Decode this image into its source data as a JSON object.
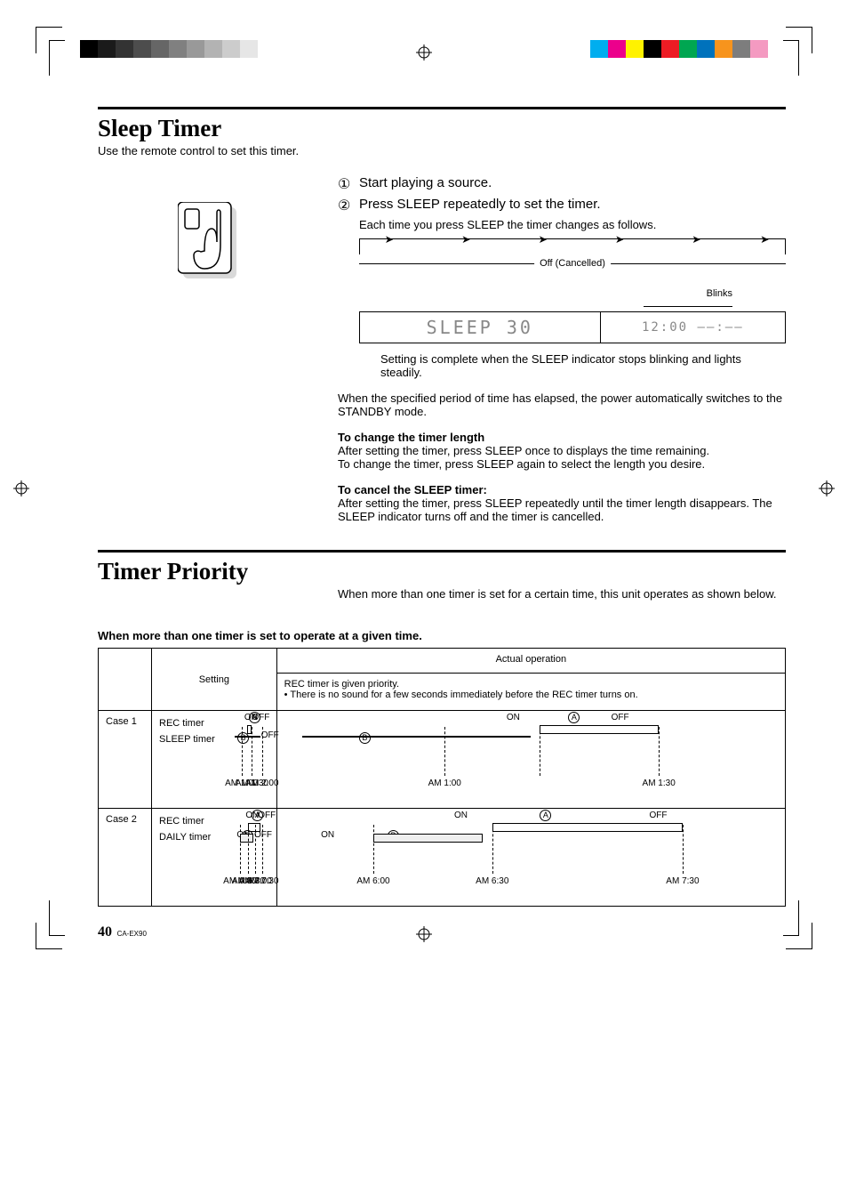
{
  "page": {
    "number": "40",
    "model": "CA-EX90"
  },
  "topbar": {
    "gray_shades": [
      "#000000",
      "#1a1a1a",
      "#333333",
      "#4d4d4d",
      "#666666",
      "#808080",
      "#999999",
      "#b3b3b3",
      "#cccccc",
      "#e6e6e6"
    ],
    "color_swatches": [
      "#00aeef",
      "#ec008c",
      "#fff200",
      "#000000",
      "#ed1c24",
      "#00a651",
      "#0072bc",
      "#f7941d",
      "#7d7d7d",
      "#f49ac1"
    ]
  },
  "sleep_timer": {
    "title": "Sleep Timer",
    "subtitle": "Use the remote control to set this timer.",
    "step1": "Start playing a source.",
    "step2": "Press SLEEP repeatedly to set the timer.",
    "step2_note": "Each time you press SLEEP the timer changes as follows.",
    "cycle_off_label": "Off (Cancelled)",
    "blinks_label": "Blinks",
    "lcd_left": "SLEEP  30",
    "lcd_right": "12:00 ‒‒:‒‒",
    "setting_complete": "Setting is complete when the SLEEP indicator stops blinking and lights steadily.",
    "elapsed_para": "When the specified period of time has elapsed, the power automatically switches to the STANDBY mode.",
    "change_head": "To change the timer length",
    "change_p1": "After setting the timer, press SLEEP once to displays the time remaining.",
    "change_p2": "To change the timer, press SLEEP again to select the length you desire.",
    "cancel_head": "To cancel the SLEEP timer:",
    "cancel_p": "After setting the timer, press SLEEP repeatedly until the timer length disappears.  The SLEEP indicator turns off and the timer is cancelled."
  },
  "timer_priority": {
    "title": "Timer Priority",
    "intro": "When more than one timer is set for a certain time, this unit operates as shown below.",
    "caption": "When more than one timer is set to operate at a given time.",
    "col_setting": "Setting",
    "col_actual": "Actual operation",
    "actual_note": "REC timer is given priority.\n• There is no sound for a few seconds immediately before the REC timer turns on.",
    "case1": {
      "label": "Case 1",
      "timer_a": "REC timer",
      "timer_b": "SLEEP timer",
      "setting": {
        "a_on": "ON",
        "a_off": "OFF",
        "b_off": "OFF",
        "times": [
          "AM 1:00",
          "AM 1:30",
          "AM 2:00"
        ]
      },
      "actual": {
        "a_on": "ON",
        "a_off": "OFF",
        "times": [
          "AM 1:00",
          "AM 1:30"
        ]
      }
    },
    "case2": {
      "label": "Case 2",
      "timer_a": "REC timer",
      "timer_b": "DAILY timer",
      "setting": {
        "a_on": "ON",
        "a_off": "OFF",
        "b_on": "ON",
        "b_off": "OFF",
        "times": [
          "AM 6:00",
          "AM 6:30",
          "AM 7:00",
          "AM 7:30"
        ]
      },
      "actual": {
        "a_on": "ON",
        "a_off": "OFF",
        "b_on": "ON",
        "times": [
          "AM 6:00",
          "AM 6:30",
          "AM 7:30"
        ]
      }
    }
  }
}
